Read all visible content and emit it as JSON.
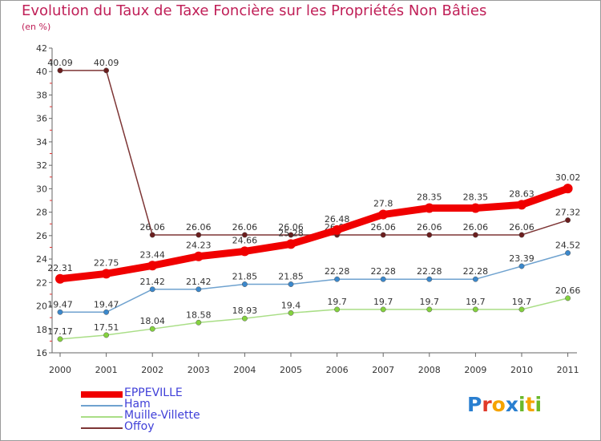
{
  "page": {
    "title": "Evolution du Taux de Taxe Foncière sur les Propriétés Non Bâties",
    "unit": "(en %)"
  },
  "logo": {
    "text": "Proxiti",
    "letters": [
      {
        "ch": "P",
        "color": "#2a7fd0"
      },
      {
        "ch": "r",
        "color": "#e03a2a"
      },
      {
        "ch": "o",
        "color": "#f5a300"
      },
      {
        "ch": "x",
        "color": "#2a7fd0"
      },
      {
        "ch": "i",
        "color": "#6ab82a"
      },
      {
        "ch": "t",
        "color": "#f5a300"
      },
      {
        "ch": "i",
        "color": "#6ab82a"
      }
    ]
  },
  "chart_data": {
    "type": "line",
    "x": [
      "2000",
      "2001",
      "2002",
      "2003",
      "2004",
      "2005",
      "2006",
      "2007",
      "2008",
      "2009",
      "2010",
      "2011"
    ],
    "ylim": [
      16,
      42
    ],
    "yticks": [
      16,
      18,
      20,
      22,
      24,
      26,
      28,
      30,
      32,
      34,
      36,
      38,
      40,
      42
    ],
    "grid": false,
    "legend_position": "bottom-left",
    "series": [
      {
        "name": "EPPEVILLE",
        "color": "#f00000",
        "width": "thick",
        "values": [
          22.31,
          22.75,
          23.44,
          24.23,
          24.66,
          25.28,
          26.48,
          27.8,
          28.35,
          28.35,
          28.63,
          30.02
        ],
        "labels": [
          "22.31",
          "22.75",
          "23.44",
          "24.23",
          "24.66",
          "25.28",
          "26.48",
          "27.8",
          "28.35",
          "28.35",
          "28.63",
          "30.02"
        ]
      },
      {
        "name": "Ham",
        "color": "#6fa2cf",
        "point_color": "#3b88cc",
        "width": "thin",
        "values": [
          19.47,
          19.47,
          21.42,
          21.42,
          21.85,
          21.85,
          22.28,
          22.28,
          22.28,
          22.28,
          23.39,
          24.52
        ],
        "labels": [
          "19.47",
          "19.47",
          "21.42",
          "21.42",
          "21.85",
          "21.85",
          "22.28",
          "22.28",
          "22.28",
          "22.28",
          "23.39",
          "24.52"
        ]
      },
      {
        "name": "Muille-Villette",
        "color": "#a9de86",
        "point_color": "#84d23e",
        "width": "thin",
        "values": [
          17.17,
          17.51,
          18.04,
          18.58,
          18.93,
          19.4,
          19.7,
          19.7,
          19.7,
          19.7,
          19.7,
          20.66
        ],
        "labels": [
          "17.17",
          "17.51",
          "18.04",
          "18.58",
          "18.93",
          "19.4",
          "19.7",
          "19.7",
          "19.7",
          "19.7",
          "19.7",
          "20.66"
        ]
      },
      {
        "name": "Offoy",
        "color": "#7d3535",
        "point_color": "#6b1e1e",
        "width": "thin",
        "values": [
          40.09,
          40.09,
          26.06,
          26.06,
          26.06,
          26.06,
          26.06,
          26.06,
          26.06,
          26.06,
          26.06,
          27.32
        ],
        "labels": [
          "40.09",
          "40.09",
          "26.06",
          "26.06",
          "26.06",
          "26.06",
          "26.06",
          "26.06",
          "26.06",
          "26.06",
          "26.06",
          "27.32"
        ]
      }
    ]
  }
}
